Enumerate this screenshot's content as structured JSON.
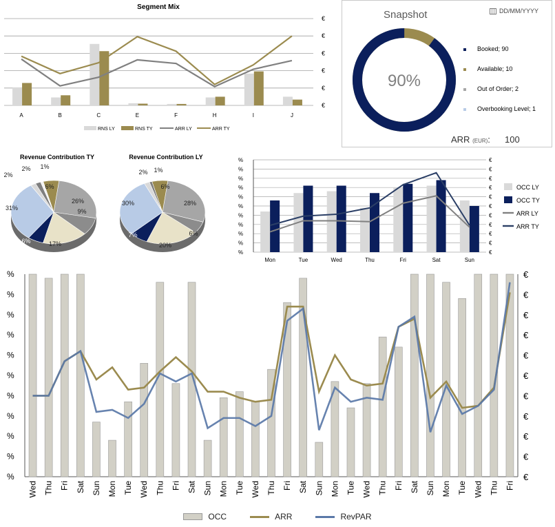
{
  "segment_mix": {
    "title": "Segment Mix",
    "categories": [
      "A",
      "B",
      "C",
      "E",
      "F",
      "H",
      "I",
      "J"
    ],
    "legend": [
      "RNS LY",
      "RNS TY",
      "ARR LY",
      "ARR TY"
    ]
  },
  "snapshot": {
    "title": "Snapshot",
    "date_placeholder": "DD/MM/YYYY",
    "center_value": "90%",
    "legend": [
      "Booked; 90",
      "Available; 10",
      "Out of Order; 2",
      "Overbooking Level; 1"
    ],
    "arr_label": "ARR",
    "arr_unit": "(EUR)",
    "arr_colon": ":",
    "arr_value": "100"
  },
  "weekly_occ": {
    "categories": [
      "Mon",
      "Tue",
      "Wed",
      "Thu",
      "Fri",
      "Sat",
      "Sun"
    ],
    "legend": [
      "OCC LY",
      "OCC TY",
      "ARR LY",
      "ARR TY"
    ]
  },
  "daily": {
    "categories": [
      "Wed",
      "Thu",
      "Fri",
      "Sat",
      "Sun",
      "Mon",
      "Tue",
      "Wed",
      "Thu",
      "Fri",
      "Sat",
      "Sun",
      "Mon",
      "Tue",
      "Wed",
      "Thu",
      "Fri",
      "Sat",
      "Sun",
      "Mon",
      "Tue",
      "Wed",
      "Thu",
      "Fri",
      "Sat",
      "Sun",
      "Mon",
      "Tue",
      "Wed",
      "Thu",
      "Fri"
    ],
    "legend": [
      "OCC",
      "ARR",
      "RevPAR"
    ]
  },
  "axis_pct": "%",
  "axis_eur": "€",
  "colors": {
    "navy": "#0b1f5c",
    "olive": "#9b8b4f",
    "grey": "#808080",
    "lightgrey": "#d9d9d9",
    "lightblue": "#b8cbe6",
    "cream": "#e8e2c8",
    "steel": "#5a78a8",
    "occbar": "#d2d0c6"
  },
  "chart_data": [
    {
      "type": "bar",
      "title": "Segment Mix",
      "categories": [
        "A",
        "B",
        "C",
        "E",
        "F",
        "H",
        "I",
        "J"
      ],
      "ylim": [
        0,
        6
      ],
      "series": [
        {
          "name": "RNS LY",
          "kind": "bar",
          "values": [
            1.25,
            0.55,
            4.25,
            0.15,
            0.1,
            0.55,
            2.2,
            0.6
          ]
        },
        {
          "name": "RNS TY",
          "kind": "bar",
          "values": [
            1.55,
            0.7,
            3.75,
            0.12,
            0.1,
            0.6,
            2.35,
            0.4
          ]
        },
        {
          "name": "ARR LY",
          "kind": "line",
          "values": [
            3.2,
            1.35,
            1.95,
            3.15,
            2.9,
            1.3,
            2.5,
            3.1
          ]
        },
        {
          "name": "ARR TY",
          "kind": "line",
          "values": [
            3.4,
            2.2,
            2.95,
            4.75,
            3.75,
            1.45,
            2.8,
            4.8
          ]
        }
      ]
    },
    {
      "type": "pie",
      "title": "Snapshot",
      "labels": [
        "Booked",
        "Available"
      ],
      "values": [
        90,
        10
      ]
    },
    {
      "type": "pie",
      "title": "Revenue Contribution TY",
      "slices": [
        {
          "label": "6%",
          "value": 6,
          "color": "#9b8b4f"
        },
        {
          "label": "26%",
          "value": 26,
          "color": "#a6a6a6"
        },
        {
          "label": "9%",
          "value": 9,
          "color": "#8c8c8c"
        },
        {
          "label": "17%",
          "value": 17,
          "color": "#e8e2c8"
        },
        {
          "label": "6%",
          "value": 6,
          "color": "#0b1f5c"
        },
        {
          "label": "31%",
          "value": 31,
          "color": "#b8cbe6"
        },
        {
          "label": "2%",
          "value": 2,
          "color": "#d9d9d9"
        },
        {
          "label": "2%",
          "value": 2,
          "color": "#7f7f7f"
        },
        {
          "label": "1%",
          "value": 1,
          "color": "#f2f2f2"
        }
      ]
    },
    {
      "type": "pie",
      "title": "Revenue Contribution LY",
      "slices": [
        {
          "label": "6%",
          "value": 6,
          "color": "#9b8b4f"
        },
        {
          "label": "28%",
          "value": 28,
          "color": "#a6a6a6"
        },
        {
          "label": "6%",
          "value": 6,
          "color": "#8c8c8c"
        },
        {
          "label": "20%",
          "value": 20,
          "color": "#e8e2c8"
        },
        {
          "label": "7%",
          "value": 7,
          "color": "#0b1f5c"
        },
        {
          "label": "30%",
          "value": 30,
          "color": "#b8cbe6"
        },
        {
          "label": "2%",
          "value": 2,
          "color": "#d9d9d9"
        },
        {
          "label": "1%",
          "value": 1,
          "color": "#7f7f7f"
        }
      ]
    },
    {
      "type": "bar",
      "categories": [
        "Mon",
        "Tue",
        "Wed",
        "Thu",
        "Fri",
        "Sat",
        "Sun"
      ],
      "ylim": [
        0,
        10
      ],
      "series": [
        {
          "name": "OCC LY",
          "kind": "bar",
          "values": [
            4.4,
            6.4,
            6.6,
            4.8,
            7.0,
            7.2,
            5.6
          ]
        },
        {
          "name": "OCC TY",
          "kind": "bar",
          "values": [
            5.6,
            7.2,
            7.2,
            6.4,
            7.4,
            7.8,
            5.0
          ]
        },
        {
          "name": "ARR LY",
          "kind": "line",
          "values": [
            2.2,
            3.4,
            3.4,
            3.3,
            5.3,
            6.1,
            2.7
          ]
        },
        {
          "name": "ARR TY",
          "kind": "line",
          "values": [
            2.9,
            3.9,
            4.1,
            4.8,
            7.3,
            8.6,
            2.9
          ]
        }
      ]
    },
    {
      "type": "bar",
      "categories": [
        "Wed",
        "Thu",
        "Fri",
        "Sat",
        "Sun",
        "Mon",
        "Tue",
        "Wed",
        "Thu",
        "Fri",
        "Sat",
        "Sun",
        "Mon",
        "Tue",
        "Wed",
        "Thu",
        "Fri",
        "Sat",
        "Sun",
        "Mon",
        "Tue",
        "Wed",
        "Thu",
        "Fri",
        "Sat",
        "Sun",
        "Mon",
        "Tue",
        "Wed",
        "Thu",
        "Fri"
      ],
      "ylim": [
        0,
        10
      ],
      "series": [
        {
          "name": "OCC",
          "kind": "bar",
          "values": [
            10,
            9.8,
            10,
            10,
            2.7,
            1.8,
            3.7,
            5.6,
            9.6,
            4.6,
            9.6,
            1.8,
            3.9,
            4.2,
            3.7,
            5.3,
            8.6,
            9.8,
            1.7,
            4.7,
            3.4,
            4.6,
            6.9,
            6.4,
            10,
            10,
            9.6,
            8.8,
            10,
            10,
            10
          ]
        },
        {
          "name": "ARR",
          "kind": "line",
          "values": [
            4,
            4,
            5.7,
            6.2,
            4.8,
            5.4,
            4.3,
            4.4,
            5.2,
            5.9,
            5.2,
            4.2,
            4.2,
            3.9,
            3.7,
            3.8,
            8.4,
            8.4,
            4.2,
            6.0,
            4.8,
            4.5,
            4.6,
            7.4,
            7.8,
            3.9,
            4.7,
            3.4,
            3.5,
            4.4,
            9.1
          ]
        },
        {
          "name": "RevPAR",
          "kind": "line",
          "values": [
            4,
            4,
            5.7,
            6.2,
            3.2,
            3.3,
            2.9,
            3.6,
            5.1,
            4.7,
            5.1,
            2.4,
            2.9,
            2.9,
            2.5,
            3.0,
            7.7,
            8.3,
            2.3,
            4.4,
            3.7,
            3.9,
            3.8,
            7.4,
            7.9,
            2.2,
            4.5,
            3.1,
            3.5,
            4.3,
            9.6
          ]
        }
      ]
    }
  ]
}
